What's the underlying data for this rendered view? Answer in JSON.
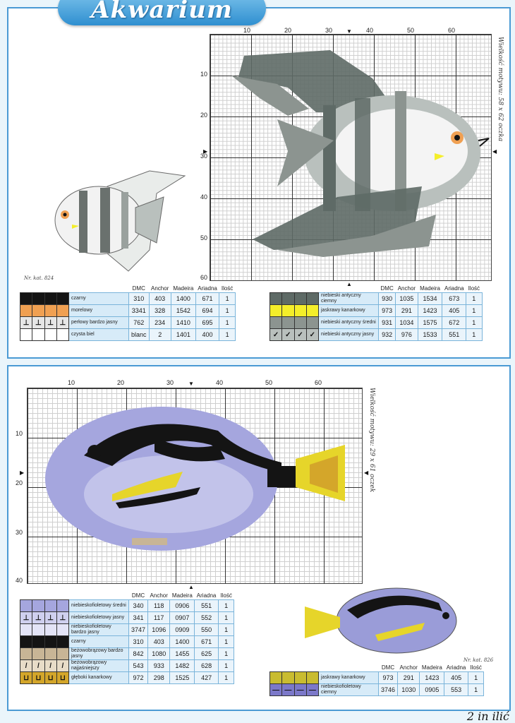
{
  "page": {
    "title": "Akwarium"
  },
  "pattern1": {
    "size_label": "Wielkość motywu: 58 x 62 oczka",
    "catalog": "Nr. kat. 824",
    "x_ticks": [
      "10",
      "20",
      "30",
      "40",
      "50",
      "60"
    ],
    "y_ticks": [
      "10",
      "20",
      "30",
      "40",
      "50",
      "60"
    ]
  },
  "pattern2": {
    "size_label": "Wielkość motywu: 29 x 61 oczek",
    "catalog": "Nr. kat. 826",
    "x_ticks": [
      "10",
      "20",
      "30",
      "40",
      "50",
      "60"
    ],
    "y_ticks": [
      "10",
      "20",
      "30",
      "40"
    ]
  },
  "legend_headers": [
    "DMC",
    "Anchor",
    "Madeira",
    "Ariadna",
    "Ilość"
  ],
  "legend1_left": [
    {
      "name": "czarny",
      "dmc": "310",
      "anchor": "403",
      "madeira": "1400",
      "ariadna": "671",
      "qty": "1",
      "color": "#141414",
      "sym": ""
    },
    {
      "name": "morelowy",
      "dmc": "3341",
      "anchor": "328",
      "madeira": "1542",
      "ariadna": "694",
      "qty": "1",
      "color": "#f0a052",
      "sym": ""
    },
    {
      "name": "perłowy bardzo jasny",
      "dmc": "762",
      "anchor": "234",
      "madeira": "1410",
      "ariadna": "695",
      "qty": "1",
      "color": "#e6e6e6",
      "sym": "⊥"
    },
    {
      "name": "czysta biel",
      "dmc": "blanc",
      "anchor": "2",
      "madeira": "1401",
      "ariadna": "400",
      "qty": "1",
      "color": "#ffffff",
      "sym": ""
    }
  ],
  "legend1_right": [
    {
      "name": "niebieski antyczny ciemny",
      "dmc": "930",
      "anchor": "1035",
      "madeira": "1534",
      "ariadna": "673",
      "qty": "1",
      "color": "#5e6a66",
      "sym": ""
    },
    {
      "name": "jaskrawy kanarkowy",
      "dmc": "973",
      "anchor": "291",
      "madeira": "1423",
      "ariadna": "405",
      "qty": "1",
      "color": "#f4ee2a",
      "sym": ""
    },
    {
      "name": "niebieski antyczny średni",
      "dmc": "931",
      "anchor": "1034",
      "madeira": "1575",
      "ariadna": "672",
      "qty": "1",
      "color": "#8c9490",
      "sym": ""
    },
    {
      "name": "niebieski antyczny jasny",
      "dmc": "932",
      "anchor": "976",
      "madeira": "1533",
      "ariadna": "551",
      "qty": "1",
      "color": "#b9c0bd",
      "sym": "✓"
    }
  ],
  "legend2_left": [
    {
      "name": "niebieskofioletowy średni",
      "dmc": "340",
      "anchor": "118",
      "madeira": "0906",
      "ariadna": "551",
      "qty": "1",
      "color": "#a5a6de",
      "sym": ""
    },
    {
      "name": "niebieskofioletowy jasny",
      "dmc": "341",
      "anchor": "117",
      "madeira": "0907",
      "ariadna": "552",
      "qty": "1",
      "color": "#cfd0ef",
      "sym": "⊥"
    },
    {
      "name": "niebieskofioletowy bardzo jasny",
      "dmc": "3747",
      "anchor": "1096",
      "madeira": "0909",
      "ariadna": "550",
      "qty": "1",
      "color": "#e3e4f7",
      "sym": ""
    },
    {
      "name": "czarny",
      "dmc": "310",
      "anchor": "403",
      "madeira": "1400",
      "ariadna": "671",
      "qty": "1",
      "color": "#141414",
      "sym": ""
    },
    {
      "name": "beżowobrązowy bardzo jasny",
      "dmc": "842",
      "anchor": "1080",
      "madeira": "1455",
      "ariadna": "625",
      "qty": "1",
      "color": "#c8b596",
      "sym": ""
    },
    {
      "name": "beżowobrązowy najjaśniejszy",
      "dmc": "543",
      "anchor": "933",
      "madeira": "1482",
      "ariadna": "628",
      "qty": "1",
      "color": "#e8dcc8",
      "sym": "/"
    },
    {
      "name": "głęboki kanarkowy",
      "dmc": "972",
      "anchor": "298",
      "madeira": "1525",
      "ariadna": "427",
      "qty": "1",
      "color": "#d4a62a",
      "sym": "⊔"
    }
  ],
  "legend2_right": [
    {
      "name": "jaskrawy kanarkowy",
      "dmc": "973",
      "anchor": "291",
      "madeira": "1423",
      "ariadna": "405",
      "qty": "1",
      "color": "#c9bc30",
      "sym": ""
    },
    {
      "name": "niebieskofioletowy ciemny",
      "dmc": "3746",
      "anchor": "1030",
      "madeira": "0905",
      "ariadna": "553",
      "qty": "1",
      "color": "#7b78c9",
      "sym": "—"
    }
  ],
  "footer_text": "2 in  ilić"
}
